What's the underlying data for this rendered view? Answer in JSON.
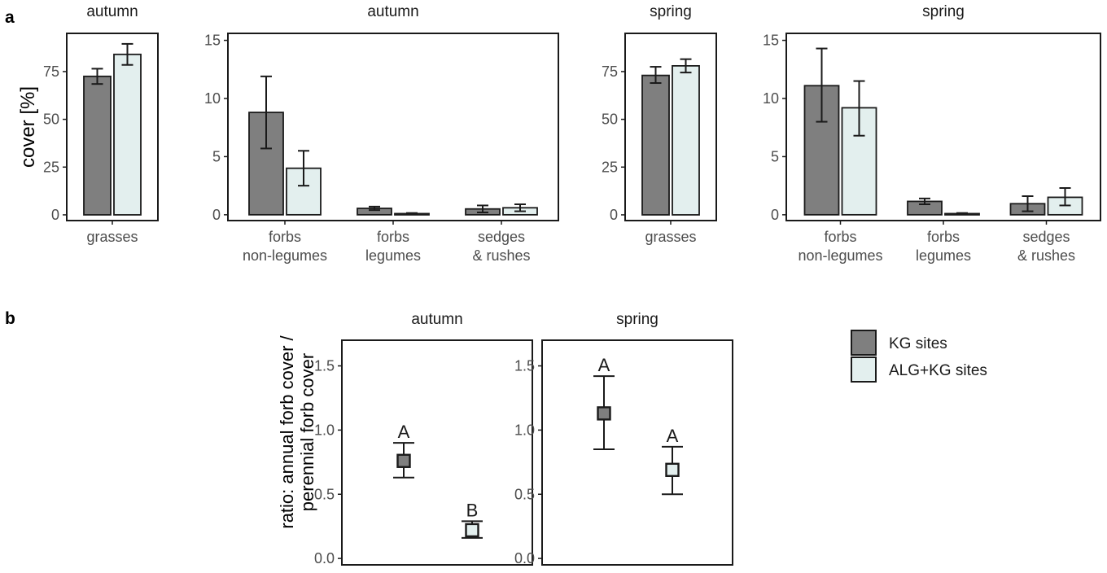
{
  "figure": {
    "panel_a_label": "a",
    "panel_b_label": "b"
  },
  "colors": {
    "kg": "#7f7f7f",
    "alg_kg": "#e3efee",
    "stroke": "#1a1a1a",
    "tick_text": "#4d4d4d"
  },
  "chart_data": [
    {
      "type": "bar",
      "strip": "autumn",
      "ylabel": "cover [%]",
      "categories": [
        "grasses"
      ],
      "yticks": [
        0,
        25,
        50,
        75
      ],
      "ylim": [
        -3,
        95
      ],
      "series": [
        {
          "name": "KG sites",
          "values": [
            72.5
          ],
          "lo": [
            68.5
          ],
          "hi": [
            76.5
          ]
        },
        {
          "name": "ALG+KG sites",
          "values": [
            84
          ],
          "lo": [
            78.5
          ],
          "hi": [
            89.5
          ]
        }
      ]
    },
    {
      "type": "bar",
      "strip": "autumn",
      "categories": [
        "forbs\nnon-legumes",
        "forbs\nlegumes",
        "sedges\n& rushes"
      ],
      "yticks": [
        0,
        5,
        10,
        15
      ],
      "ylim": [
        -0.5,
        15.6
      ],
      "series": [
        {
          "name": "KG sites",
          "values": [
            8.8,
            0.55,
            0.5
          ],
          "lo": [
            5.7,
            0.4,
            0.2
          ],
          "hi": [
            11.9,
            0.7,
            0.8
          ]
        },
        {
          "name": "ALG+KG sites",
          "values": [
            4.0,
            0.1,
            0.6
          ],
          "lo": [
            2.5,
            0.05,
            0.3
          ],
          "hi": [
            5.5,
            0.15,
            0.9
          ]
        }
      ]
    },
    {
      "type": "bar",
      "strip": "spring",
      "categories": [
        "grasses"
      ],
      "yticks": [
        0,
        25,
        50,
        75
      ],
      "ylim": [
        -3,
        95
      ],
      "series": [
        {
          "name": "KG sites",
          "values": [
            73
          ],
          "lo": [
            69
          ],
          "hi": [
            77.5
          ]
        },
        {
          "name": "ALG+KG sites",
          "values": [
            78
          ],
          "lo": [
            74.5
          ],
          "hi": [
            81.5
          ]
        }
      ]
    },
    {
      "type": "bar",
      "strip": "spring",
      "categories": [
        "forbs\nnon-legumes",
        "forbs\nlegumes",
        "sedges\n& rushes"
      ],
      "yticks": [
        0,
        5,
        10,
        15
      ],
      "ylim": [
        -0.5,
        15.6
      ],
      "series": [
        {
          "name": "KG sites",
          "values": [
            11.1,
            1.15,
            0.95
          ],
          "lo": [
            8.0,
            0.9,
            0.3
          ],
          "hi": [
            14.3,
            1.4,
            1.6
          ]
        },
        {
          "name": "ALG+KG sites",
          "values": [
            9.2,
            0.1,
            1.5
          ],
          "lo": [
            6.8,
            0.05,
            0.8
          ],
          "hi": [
            11.5,
            0.15,
            2.3
          ]
        }
      ]
    },
    {
      "type": "scatter",
      "strip": "autumn",
      "ylabel": "ratio: annual forb cover /\nperennial forb cover",
      "yticks": [
        "0.0",
        "0.5",
        "1.0",
        "1.5"
      ],
      "ylim": [
        -0.05,
        1.7
      ],
      "series": [
        {
          "name": "KG sites",
          "y": 0.76,
          "lo": 0.63,
          "hi": 0.9,
          "letter": "A"
        },
        {
          "name": "ALG+KG sites",
          "y": 0.22,
          "lo": 0.16,
          "hi": 0.29,
          "letter": "B"
        }
      ]
    },
    {
      "type": "scatter",
      "strip": "spring",
      "yticks": [
        "0.0",
        "0.5",
        "1.0",
        "1.5"
      ],
      "ylim": [
        -0.05,
        1.7
      ],
      "series": [
        {
          "name": "KG sites",
          "y": 1.13,
          "lo": 0.85,
          "hi": 1.42,
          "letter": "A"
        },
        {
          "name": "ALG+KG sites",
          "y": 0.69,
          "lo": 0.5,
          "hi": 0.87,
          "letter": "A"
        }
      ]
    }
  ],
  "legend": {
    "items": [
      "KG sites",
      "ALG+KG sites"
    ],
    "placement": "right"
  }
}
